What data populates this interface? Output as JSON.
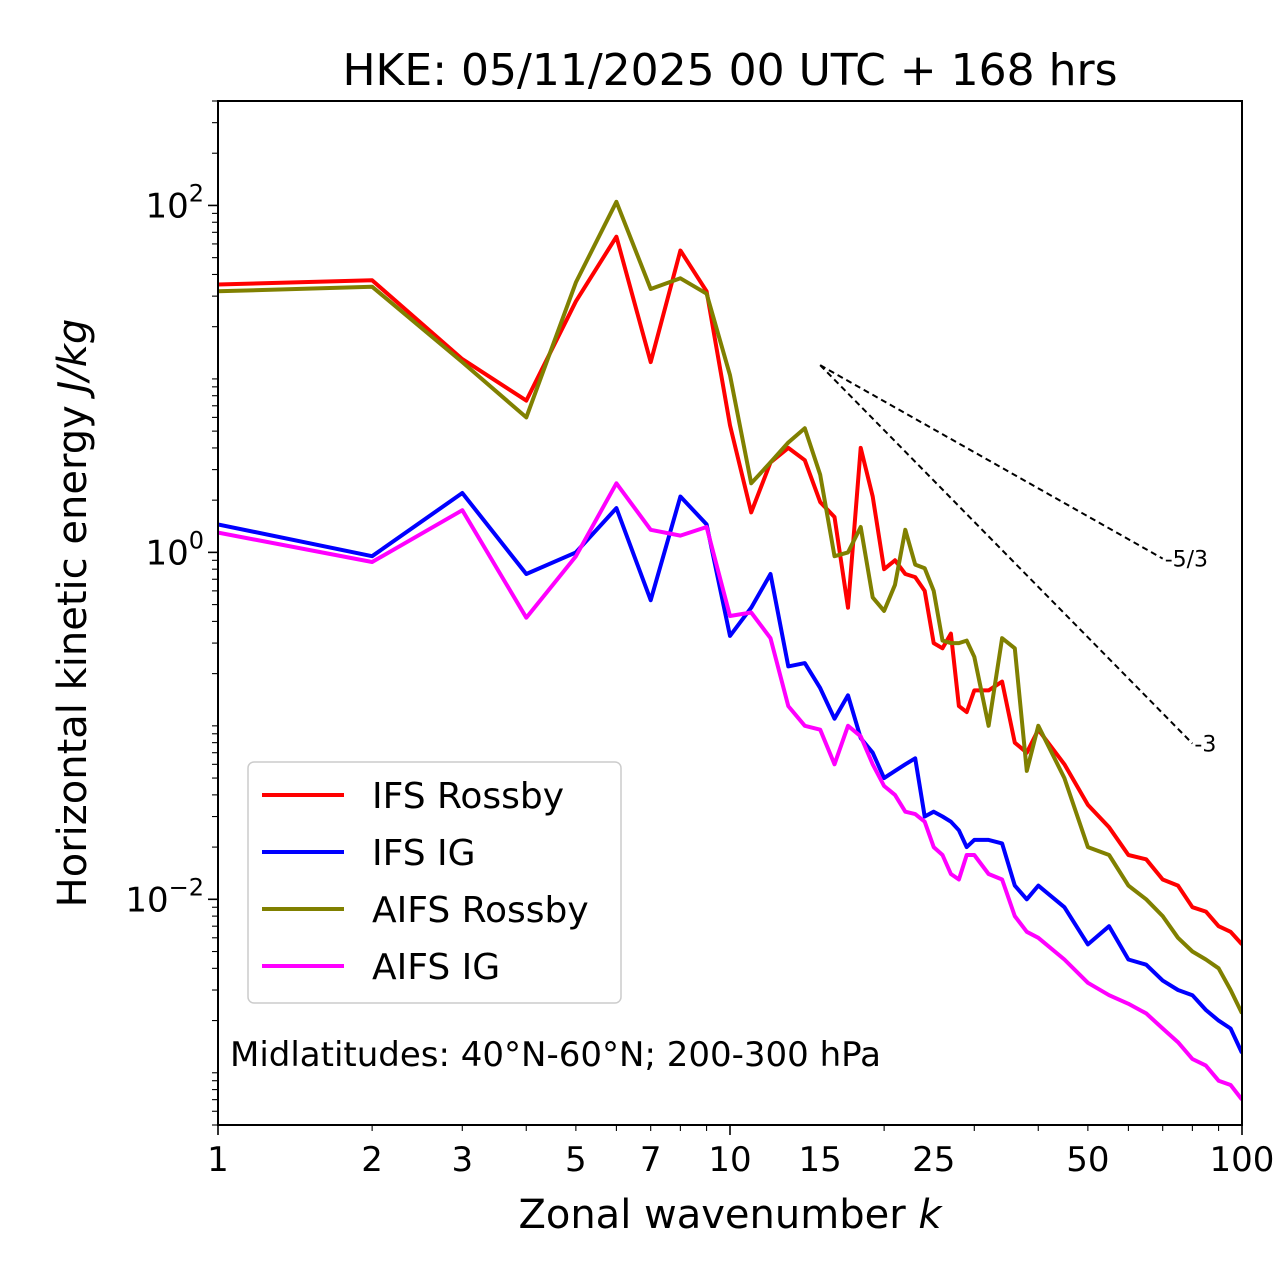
{
  "chart_data": {
    "type": "line",
    "title": "HKE: 05/11/2025 00 UTC + 168 hrs",
    "xlabel_main": "Zonal wavenumber ",
    "xlabel_var": "k",
    "ylabel_main": "Horizontal kinetic energy ",
    "ylabel_unit": "J/kg",
    "xscale": "log",
    "yscale": "log",
    "xlim": [
      1,
      100
    ],
    "ylim": [
      0.0005,
      400
    ],
    "xticks": [
      1,
      2,
      3,
      5,
      7,
      10,
      15,
      25,
      50,
      100
    ],
    "xtick_labels": [
      "1",
      "2",
      "3",
      "5",
      "7",
      "10",
      "15",
      "25",
      "50",
      "100"
    ],
    "yticks": [
      {
        "value": 100,
        "base": "10",
        "exp": "2"
      },
      {
        "value": 1,
        "base": "10",
        "exp": "0"
      },
      {
        "value": 0.01,
        "base": "10",
        "exp": "−2"
      }
    ],
    "annotation": "Midlatitudes: 40°N-60°N; 200-300 hPa",
    "legend_position": "lower-left",
    "series": [
      {
        "name": "IFS Rossby",
        "color": "#ff0000",
        "x": [
          1,
          2,
          3,
          4,
          5,
          6,
          7,
          8,
          9,
          10,
          11,
          12,
          13,
          14,
          15,
          16,
          17,
          18,
          19,
          20,
          21,
          22,
          23,
          24,
          25,
          26,
          27,
          28,
          29,
          30,
          32,
          34,
          36,
          38,
          40,
          45,
          50,
          55,
          60,
          65,
          70,
          75,
          80,
          85,
          90,
          95,
          100
        ],
        "values": [
          35,
          37,
          13,
          7.5,
          28,
          66,
          12.5,
          55,
          32,
          5.4,
          1.7,
          3.3,
          4,
          3.4,
          1.95,
          1.6,
          0.48,
          4,
          2.1,
          0.8,
          0.9,
          0.75,
          0.72,
          0.6,
          0.3,
          0.28,
          0.34,
          0.13,
          0.12,
          0.16,
          0.16,
          0.18,
          0.08,
          0.07,
          0.095,
          0.06,
          0.035,
          0.026,
          0.018,
          0.017,
          0.013,
          0.012,
          0.009,
          0.0085,
          0.007,
          0.0065,
          0.0055
        ]
      },
      {
        "name": "IFS IG",
        "color": "#0000ff",
        "x": [
          1,
          2,
          3,
          4,
          5,
          6,
          7,
          8,
          9,
          10,
          11,
          12,
          13,
          14,
          15,
          16,
          17,
          18,
          19,
          20,
          21,
          22,
          23,
          24,
          25,
          26,
          27,
          28,
          29,
          30,
          32,
          34,
          36,
          38,
          40,
          45,
          50,
          55,
          60,
          65,
          70,
          75,
          80,
          85,
          90,
          95,
          100
        ],
        "values": [
          1.45,
          0.95,
          2.2,
          0.75,
          1,
          1.8,
          0.53,
          2.1,
          1.45,
          0.33,
          0.48,
          0.75,
          0.22,
          0.23,
          0.165,
          0.11,
          0.15,
          0.085,
          0.07,
          0.05,
          0.055,
          0.06,
          0.065,
          0.03,
          0.032,
          0.03,
          0.028,
          0.025,
          0.02,
          0.022,
          0.022,
          0.021,
          0.012,
          0.01,
          0.012,
          0.009,
          0.0055,
          0.007,
          0.0045,
          0.0042,
          0.0034,
          0.003,
          0.0028,
          0.0023,
          0.002,
          0.0018,
          0.0013
        ]
      },
      {
        "name": "AIFS Rossby",
        "color": "#808000",
        "x": [
          1,
          2,
          3,
          4,
          5,
          6,
          7,
          8,
          9,
          10,
          11,
          12,
          13,
          14,
          15,
          16,
          17,
          18,
          19,
          20,
          21,
          22,
          23,
          24,
          25,
          26,
          27,
          28,
          29,
          30,
          32,
          34,
          36,
          38,
          40,
          45,
          50,
          55,
          60,
          65,
          70,
          75,
          80,
          85,
          90,
          95,
          100
        ],
        "values": [
          32,
          34,
          12.5,
          6,
          36,
          105,
          33,
          38,
          31,
          10.5,
          2.5,
          3.3,
          4.3,
          5.2,
          2.8,
          0.95,
          1,
          1.4,
          0.55,
          0.46,
          0.65,
          1.35,
          0.85,
          0.81,
          0.6,
          0.31,
          0.3,
          0.3,
          0.31,
          0.25,
          0.1,
          0.32,
          0.28,
          0.055,
          0.1,
          0.05,
          0.02,
          0.018,
          0.012,
          0.01,
          0.008,
          0.006,
          0.005,
          0.0045,
          0.004,
          0.003,
          0.0022
        ]
      },
      {
        "name": "AIFS IG",
        "color": "#ff00ff",
        "x": [
          1,
          2,
          3,
          4,
          5,
          6,
          7,
          8,
          9,
          10,
          11,
          12,
          13,
          14,
          15,
          16,
          17,
          18,
          19,
          20,
          21,
          22,
          23,
          24,
          25,
          26,
          27,
          28,
          29,
          30,
          32,
          34,
          36,
          38,
          40,
          45,
          50,
          55,
          60,
          65,
          70,
          75,
          80,
          85,
          90,
          95,
          100
        ],
        "values": [
          1.3,
          0.88,
          1.75,
          0.42,
          0.95,
          2.5,
          1.35,
          1.25,
          1.4,
          0.43,
          0.45,
          0.32,
          0.13,
          0.1,
          0.095,
          0.06,
          0.1,
          0.087,
          0.06,
          0.045,
          0.04,
          0.032,
          0.031,
          0.028,
          0.02,
          0.018,
          0.014,
          0.013,
          0.018,
          0.018,
          0.014,
          0.013,
          0.008,
          0.0065,
          0.006,
          0.0045,
          0.0033,
          0.0028,
          0.0025,
          0.0022,
          0.0018,
          0.0015,
          0.0012,
          0.0011,
          0.0009,
          0.00085,
          0.0007
        ]
      }
    ],
    "reference_lines": [
      {
        "label": "-5/3",
        "slope": -1.6667,
        "x0": 15,
        "y0": 12,
        "x1": 70
      },
      {
        "label": "-3",
        "slope": -3,
        "x0": 15,
        "y0": 12,
        "x1": 80
      }
    ]
  }
}
